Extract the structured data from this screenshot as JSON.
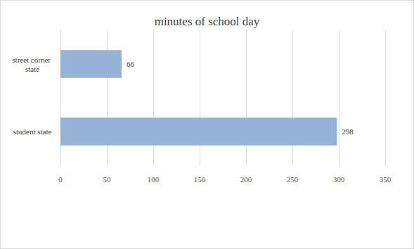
{
  "chart_data": {
    "type": "bar",
    "title": "minutes of school day",
    "orientation": "horizontal",
    "categories": [
      "student state",
      "street corner state"
    ],
    "values": [
      298,
      66
    ],
    "color": "#95b3d7",
    "xlim": [
      0,
      350
    ],
    "xticks": [
      0,
      50,
      100,
      150,
      200,
      250,
      300,
      350
    ],
    "grid": true,
    "data_labels": true
  }
}
